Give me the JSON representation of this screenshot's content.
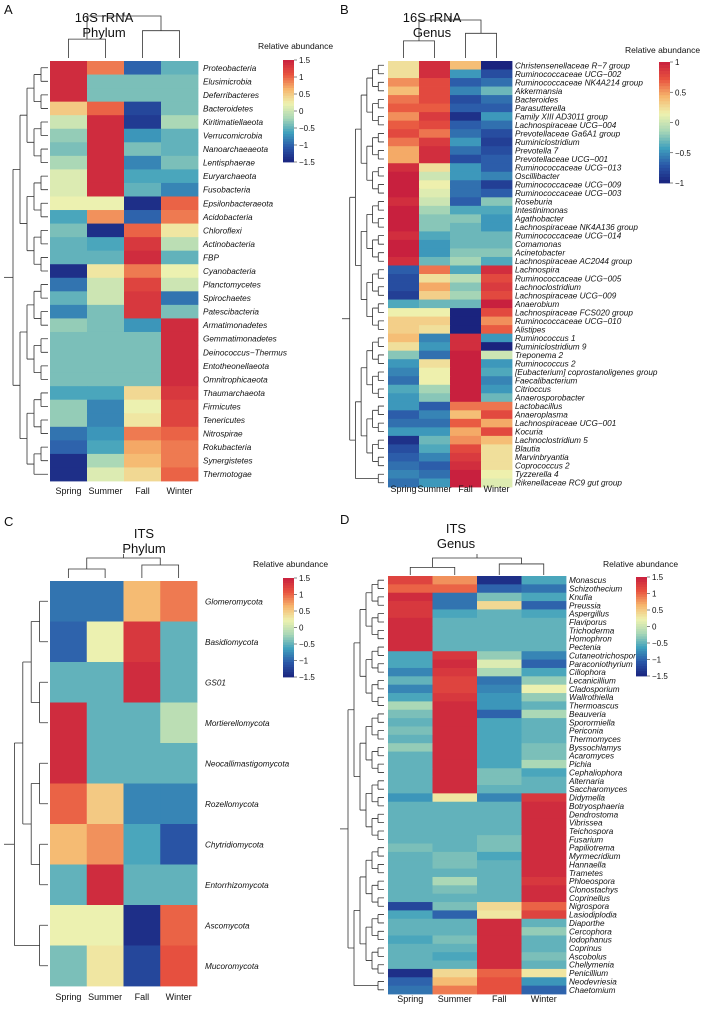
{
  "palette": [
    "#1a237e",
    "#2a57a8",
    "#3fa0bd",
    "#a9d7b6",
    "#eef2b0",
    "#f6b56c",
    "#e8533f",
    "#c8203e"
  ],
  "chart_data": [
    {
      "type": "heatmap",
      "panel": "A",
      "title": "16S rRNA",
      "subtitle": "Phylum",
      "legend_title": "Relative abundance",
      "legend_ticks": [
        "1.5",
        "1",
        "0.5",
        "0",
        "−0.5",
        "−1",
        "−1.5"
      ],
      "vmin": -1.5,
      "vmax": 1.5,
      "columns": [
        "Spring",
        "Summer",
        "Fall",
        "Winter"
      ],
      "rows": [
        "Proteobacteria",
        "Elusimicrobia",
        "Deferribacteres",
        "Bacteroidetes",
        "Kiritimatiellaeota",
        "Verrucomicrobia",
        "Nanoarchaeaeota",
        "Lentisphaerae",
        "Euryarchaeota",
        "Fusobacteria",
        "Epsilonbacteraeota",
        "Acidobacteria",
        "Chloroflexi",
        "Actinobacteria",
        "FBP",
        "Cyanobacteria",
        "Planctomycetes",
        "Spirochaetes",
        "Patescibacteria",
        "Armatimonadetes",
        "Gemmatimonadetes",
        "Deinococcus−Thermus",
        "Entotheonellaeota",
        "Omnitrophicaeota",
        "Thaumarchaeota",
        "Firmicutes",
        "Tenericutes",
        "Nitrospirae",
        "Rokubacteria",
        "Synergistetes",
        "Thermotogae"
      ],
      "values": [
        [
          1.4,
          0.9,
          -1.0,
          -0.5
        ],
        [
          1.4,
          -0.4,
          -0.4,
          -0.4
        ],
        [
          1.4,
          -0.4,
          -0.4,
          -0.4
        ],
        [
          0.5,
          1.0,
          -1.2,
          -0.4
        ],
        [
          0.0,
          1.4,
          -1.3,
          -0.2
        ],
        [
          -0.3,
          1.4,
          -0.7,
          -0.5
        ],
        [
          -0.4,
          1.4,
          -0.4,
          -0.5
        ],
        [
          -0.2,
          1.4,
          -0.8,
          -0.4
        ],
        [
          0.1,
          1.4,
          -0.6,
          -0.6
        ],
        [
          0.1,
          1.4,
          -0.5,
          -0.8
        ],
        [
          0.2,
          0.2,
          -1.4,
          1.0
        ],
        [
          -0.6,
          0.8,
          -1.0,
          0.9
        ],
        [
          -0.4,
          -1.4,
          1.0,
          0.3
        ],
        [
          -0.5,
          -0.6,
          1.3,
          -0.1
        ],
        [
          -0.5,
          -0.5,
          1.4,
          -0.5
        ],
        [
          -1.4,
          0.3,
          0.9,
          0.2
        ],
        [
          -0.9,
          0.0,
          1.2,
          0.0
        ],
        [
          -0.5,
          0.0,
          1.3,
          -0.9
        ],
        [
          -0.8,
          -0.4,
          1.3,
          -0.4
        ],
        [
          -0.3,
          -0.4,
          -0.7,
          1.4
        ],
        [
          -0.4,
          -0.4,
          -0.4,
          1.4
        ],
        [
          -0.4,
          -0.4,
          -0.4,
          1.4
        ],
        [
          -0.4,
          -0.4,
          -0.4,
          1.4
        ],
        [
          -0.4,
          -0.4,
          -0.4,
          1.4
        ],
        [
          -0.6,
          -0.6,
          0.4,
          1.3
        ],
        [
          -0.3,
          -0.8,
          0.2,
          1.2
        ],
        [
          -0.3,
          -0.8,
          0.3,
          1.2
        ],
        [
          -0.9,
          -0.7,
          0.9,
          1.0
        ],
        [
          -1.0,
          -0.6,
          0.7,
          0.9
        ],
        [
          -1.4,
          -0.2,
          0.6,
          0.9
        ],
        [
          -1.4,
          0.1,
          0.4,
          1.0
        ]
      ]
    },
    {
      "type": "heatmap",
      "panel": "B",
      "title": "16S rRNA",
      "subtitle": "Genus",
      "legend_title": "Relative abundance",
      "legend_ticks": [
        "1",
        "0.5",
        "0",
        "−0.5",
        "−1"
      ],
      "vmin": -1.3,
      "vmax": 1.3,
      "columns": [
        "Spring",
        "Summer",
        "Fall",
        "Winter"
      ],
      "rows": [
        "Christensenellaceae R−7 group",
        "Ruminococcaceae UCG−002",
        "Ruminococcaceae NK4A214 group",
        "Akkermansia",
        "Bacteroides",
        "Parasutterella",
        "Family XIII AD3011 group",
        "Lachnospiraceae UCG−004",
        "Prevotellaceae Ga6A1 group",
        "Ruminiclostridium",
        "Prevotella 7",
        "Prevotellaceae UCG−001",
        "Ruminococcaceae UCG−013",
        "Oscillibacter",
        "Ruminococcaceae UCG−009",
        "Ruminococcaceae UCG−003",
        "Roseburia",
        "Intestinimonas",
        "Agathobacter",
        "Lachnospiraceae NK4A136 group",
        "Ruminococcaceae UCG−014",
        "Comamonas",
        "Acinetobacter",
        "Lachnospiraceae AC2044 group",
        "Lachnospira",
        "Ruminococcaceae UCG−005",
        "Lachnoclostridium",
        "Lachnospiraceae UCG−009",
        "Anaerobium",
        "Lachnospiraceae FCS020 group",
        "Ruminococcaceae UCG−010",
        "Alistipes",
        "Ruminococcus 1",
        "Ruminiclostridium 9",
        "Treponema 2",
        "Ruminococcus 2",
        "[Eubacterium] coprostanoligenes group",
        "Faecalibacterium",
        "Citrioccus",
        "Anaerosporobacter",
        "Lactobacillus",
        "Anaeroplasma",
        "Lachnospiraceae UCG−001",
        "Kocuria",
        "Lachnoclostridium 5",
        "Blautia",
        "Marvinbryantia",
        "Coprococcus 2",
        "Tyzzerella 4",
        "Rikenellaceae RC9 gut group"
      ],
      "values": [
        [
          0.3,
          1.2,
          0.5,
          -1.3
        ],
        [
          0.3,
          1.2,
          -0.6,
          -1.0
        ],
        [
          0.7,
          1.0,
          -0.9,
          -0.8
        ],
        [
          0.5,
          1.0,
          -0.7,
          -0.4
        ],
        [
          0.8,
          1.0,
          -1.0,
          -0.8
        ],
        [
          0.9,
          0.9,
          -0.9,
          -0.9
        ],
        [
          0.7,
          1.1,
          -1.2,
          -0.6
        ],
        [
          0.9,
          1.0,
          -0.9,
          -0.8
        ],
        [
          1.0,
          0.8,
          -0.8,
          -1.0
        ],
        [
          0.8,
          1.1,
          -0.6,
          -1.1
        ],
        [
          0.6,
          1.2,
          -0.8,
          -1.0
        ],
        [
          0.6,
          1.2,
          -1.0,
          -0.9
        ],
        [
          1.2,
          0.3,
          -0.6,
          -0.9
        ],
        [
          1.3,
          0.0,
          -0.6,
          -0.7
        ],
        [
          1.3,
          0.2,
          -0.8,
          -1.1
        ],
        [
          1.3,
          0.1,
          -0.8,
          -0.9
        ],
        [
          1.2,
          0.0,
          -0.9,
          -0.3
        ],
        [
          1.3,
          -0.2,
          -0.5,
          -0.5
        ],
        [
          1.3,
          -0.3,
          -0.3,
          -0.6
        ],
        [
          1.3,
          -0.3,
          -0.4,
          -0.6
        ],
        [
          1.2,
          -0.5,
          -0.4,
          -0.4
        ],
        [
          1.3,
          -0.6,
          -0.4,
          -0.4
        ],
        [
          1.3,
          -0.6,
          -0.3,
          -0.3
        ],
        [
          1.2,
          -0.4,
          -0.2,
          -0.5
        ],
        [
          -0.9,
          0.8,
          -0.5,
          1.2
        ],
        [
          -1.0,
          0.3,
          -0.1,
          1.0
        ],
        [
          -1.0,
          0.6,
          -0.3,
          1.1
        ],
        [
          -1.1,
          0.4,
          -0.2,
          1.0
        ],
        [
          -0.5,
          -0.4,
          -0.4,
          1.3
        ],
        [
          0.2,
          0.2,
          -1.4,
          1.0
        ],
        [
          0.4,
          0.4,
          -1.4,
          0.7
        ],
        [
          0.4,
          0.3,
          -1.3,
          0.9
        ],
        [
          0.5,
          -0.7,
          1.2,
          -0.6
        ],
        [
          0.3,
          -0.6,
          1.2,
          -1.3
        ],
        [
          -0.3,
          -0.8,
          1.3,
          0.0
        ],
        [
          -0.6,
          0.3,
          1.3,
          -0.6
        ],
        [
          -0.7,
          0.2,
          1.3,
          -0.5
        ],
        [
          -0.8,
          0.2,
          1.3,
          -0.7
        ],
        [
          -0.5,
          -0.2,
          1.3,
          -0.6
        ],
        [
          -0.6,
          -0.3,
          1.3,
          -0.4
        ],
        [
          -0.6,
          -0.9,
          0.8,
          0.8
        ],
        [
          -0.9,
          -0.7,
          0.5,
          1.0
        ],
        [
          -0.8,
          -0.8,
          0.9,
          0.6
        ],
        [
          -0.6,
          -0.6,
          0.6,
          1.0
        ],
        [
          -1.2,
          -0.4,
          0.7,
          0.5
        ],
        [
          -1.0,
          -0.5,
          1.0,
          0.3
        ],
        [
          -0.9,
          -0.7,
          1.1,
          0.3
        ],
        [
          -0.8,
          -0.9,
          1.2,
          0.3
        ],
        [
          -0.7,
          -0.8,
          1.3,
          0.2
        ],
        [
          -0.8,
          -0.6,
          1.3,
          0.1
        ]
      ]
    },
    {
      "type": "heatmap",
      "panel": "C",
      "title": "ITS",
      "subtitle": "Phylum",
      "legend_title": "Relative abundance",
      "legend_ticks": [
        "1.5",
        "1",
        "0.5",
        "0",
        "−0.5",
        "−1",
        "−1.5"
      ],
      "vmin": -1.5,
      "vmax": 1.5,
      "columns": [
        "Spring",
        "Summer",
        "Fall",
        "Winter"
      ],
      "rows": [
        "Glomeromycota",
        "Basidiomycota",
        "GS01",
        "Mortierellomycota",
        "Neocallimastigomycota",
        "Rozellomycota",
        "Chytridiomycota",
        "Entorrhizomycota",
        "Ascomycota",
        "Mucoromycota"
      ],
      "values": [
        [
          -0.9,
          -0.9,
          0.6,
          0.9
        ],
        [
          -1.0,
          0.2,
          1.3,
          -0.5
        ],
        [
          -0.5,
          -0.5,
          1.4,
          -0.5
        ],
        [
          1.4,
          -0.5,
          -0.5,
          -0.1
        ],
        [
          1.4,
          -0.5,
          -0.5,
          -0.5
        ],
        [
          1.0,
          0.5,
          -0.8,
          -0.8
        ],
        [
          0.6,
          0.8,
          -0.6,
          -1.1
        ],
        [
          -0.5,
          1.4,
          -0.5,
          -0.5
        ],
        [
          0.2,
          0.2,
          -1.4,
          1.0
        ],
        [
          -0.4,
          0.3,
          -1.2,
          1.1
        ]
      ]
    },
    {
      "type": "heatmap",
      "panel": "D",
      "title": "ITS",
      "subtitle": "Genus",
      "legend_title": "Relative abundance",
      "legend_ticks": [
        "1.5",
        "1",
        "0.5",
        "0",
        "−0.5",
        "−1",
        "−1.5"
      ],
      "vmin": -1.5,
      "vmax": 1.5,
      "columns": [
        "Spring",
        "Summer",
        "Fall",
        "Winter"
      ],
      "rows": [
        "Monascus",
        "Schizothecium",
        "Knufia",
        "Preussia",
        "Aspergillus",
        "Flaviporus",
        "Trichoderma",
        "Homophron",
        "Pectenia",
        "Cutaneotrichosporon",
        "Paraconiothyrium",
        "Ciliophora",
        "Lecanicillium",
        "Cladosporium",
        "Wallrothiella",
        "Thermoascus",
        "Beauveria",
        "Sporormiella",
        "Periconia",
        "Thermomyces",
        "Byssochlamys",
        "Acaromyces",
        "Pichia",
        "Cephaliophora",
        "Alternaria",
        "Saccharomyces",
        "Didymella",
        "Botryosphaeria",
        "Dendrostoma",
        "Vibrissea",
        "Teichospora",
        "Fusarium",
        "Papiliotrema",
        "Myrmecridium",
        "Hannaella",
        "Trametes",
        "Phloeospora",
        "Clonostachys",
        "Coprinellus",
        "Nigrospora",
        "Lasiodiplodia",
        "Diaporthe",
        "Cercophora",
        "Iodophanus",
        "Coprinus",
        "Ascobolus",
        "Chellymenia",
        "Penicillium",
        "Neodevriesia",
        "Chaetomium"
      ],
      "values": [
        [
          1.2,
          0.8,
          -1.4,
          -0.6
        ],
        [
          1.0,
          1.0,
          -1.0,
          -0.9
        ],
        [
          1.4,
          -0.9,
          -0.4,
          -0.6
        ],
        [
          1.3,
          -0.9,
          0.4,
          -1.0
        ],
        [
          1.3,
          -0.6,
          -0.5,
          -0.6
        ],
        [
          1.4,
          -0.5,
          -0.5,
          -0.5
        ],
        [
          1.4,
          -0.5,
          -0.5,
          -0.5
        ],
        [
          1.4,
          -0.5,
          -0.5,
          -0.5
        ],
        [
          1.4,
          -0.5,
          -0.5,
          -0.5
        ],
        [
          -0.6,
          1.3,
          -0.3,
          -0.8
        ],
        [
          -0.6,
          1.4,
          0.1,
          -1.0
        ],
        [
          -0.8,
          1.3,
          -0.2,
          -0.6
        ],
        [
          -0.5,
          1.2,
          -0.9,
          -0.3
        ],
        [
          -0.8,
          1.2,
          -0.8,
          0.2
        ],
        [
          -0.6,
          1.3,
          -0.7,
          -0.3
        ],
        [
          -0.2,
          1.4,
          -0.7,
          -0.5
        ],
        [
          -0.4,
          1.4,
          -1.0,
          -0.2
        ],
        [
          -0.5,
          1.4,
          -0.6,
          -0.5
        ],
        [
          -0.4,
          1.4,
          -0.6,
          -0.5
        ],
        [
          -0.5,
          1.4,
          -0.6,
          -0.5
        ],
        [
          -0.3,
          1.4,
          -0.6,
          -0.4
        ],
        [
          -0.5,
          1.4,
          -0.6,
          -0.4
        ],
        [
          -0.5,
          1.4,
          -0.6,
          -0.2
        ],
        [
          -0.5,
          1.4,
          -0.4,
          -0.6
        ],
        [
          -0.5,
          1.4,
          -0.4,
          -0.5
        ],
        [
          -0.5,
          1.4,
          -0.5,
          -0.5
        ],
        [
          -0.7,
          0.3,
          -0.8,
          1.3
        ],
        [
          -0.5,
          -0.5,
          -0.5,
          1.4
        ],
        [
          -0.5,
          -0.5,
          -0.5,
          1.4
        ],
        [
          -0.5,
          -0.5,
          -0.5,
          1.4
        ],
        [
          -0.5,
          -0.5,
          -0.5,
          1.4
        ],
        [
          -0.5,
          -0.5,
          -0.4,
          1.4
        ],
        [
          -0.4,
          -0.5,
          -0.4,
          1.4
        ],
        [
          -0.5,
          -0.4,
          -0.6,
          1.4
        ],
        [
          -0.5,
          -0.4,
          -0.5,
          1.4
        ],
        [
          -0.5,
          -0.5,
          -0.5,
          1.4
        ],
        [
          -0.5,
          -0.2,
          -0.5,
          1.3
        ],
        [
          -0.5,
          -0.4,
          -0.5,
          1.4
        ],
        [
          -0.5,
          -0.5,
          -0.5,
          1.4
        ],
        [
          -1.2,
          -0.4,
          0.4,
          1.0
        ],
        [
          -0.6,
          -1.0,
          0.3,
          1.2
        ],
        [
          -0.5,
          -0.5,
          1.4,
          -0.5
        ],
        [
          -0.5,
          -0.5,
          1.4,
          -0.3
        ],
        [
          -0.6,
          -0.4,
          1.4,
          -0.5
        ],
        [
          -0.5,
          -0.5,
          1.4,
          -0.5
        ],
        [
          -0.5,
          -0.6,
          1.4,
          -0.4
        ],
        [
          -0.5,
          -0.5,
          1.4,
          -0.5
        ],
        [
          -1.4,
          0.4,
          1.0,
          0.3
        ],
        [
          -1.0,
          0.6,
          1.1,
          -0.7
        ],
        [
          -0.9,
          0.9,
          1.1,
          -1.0
        ]
      ]
    }
  ]
}
